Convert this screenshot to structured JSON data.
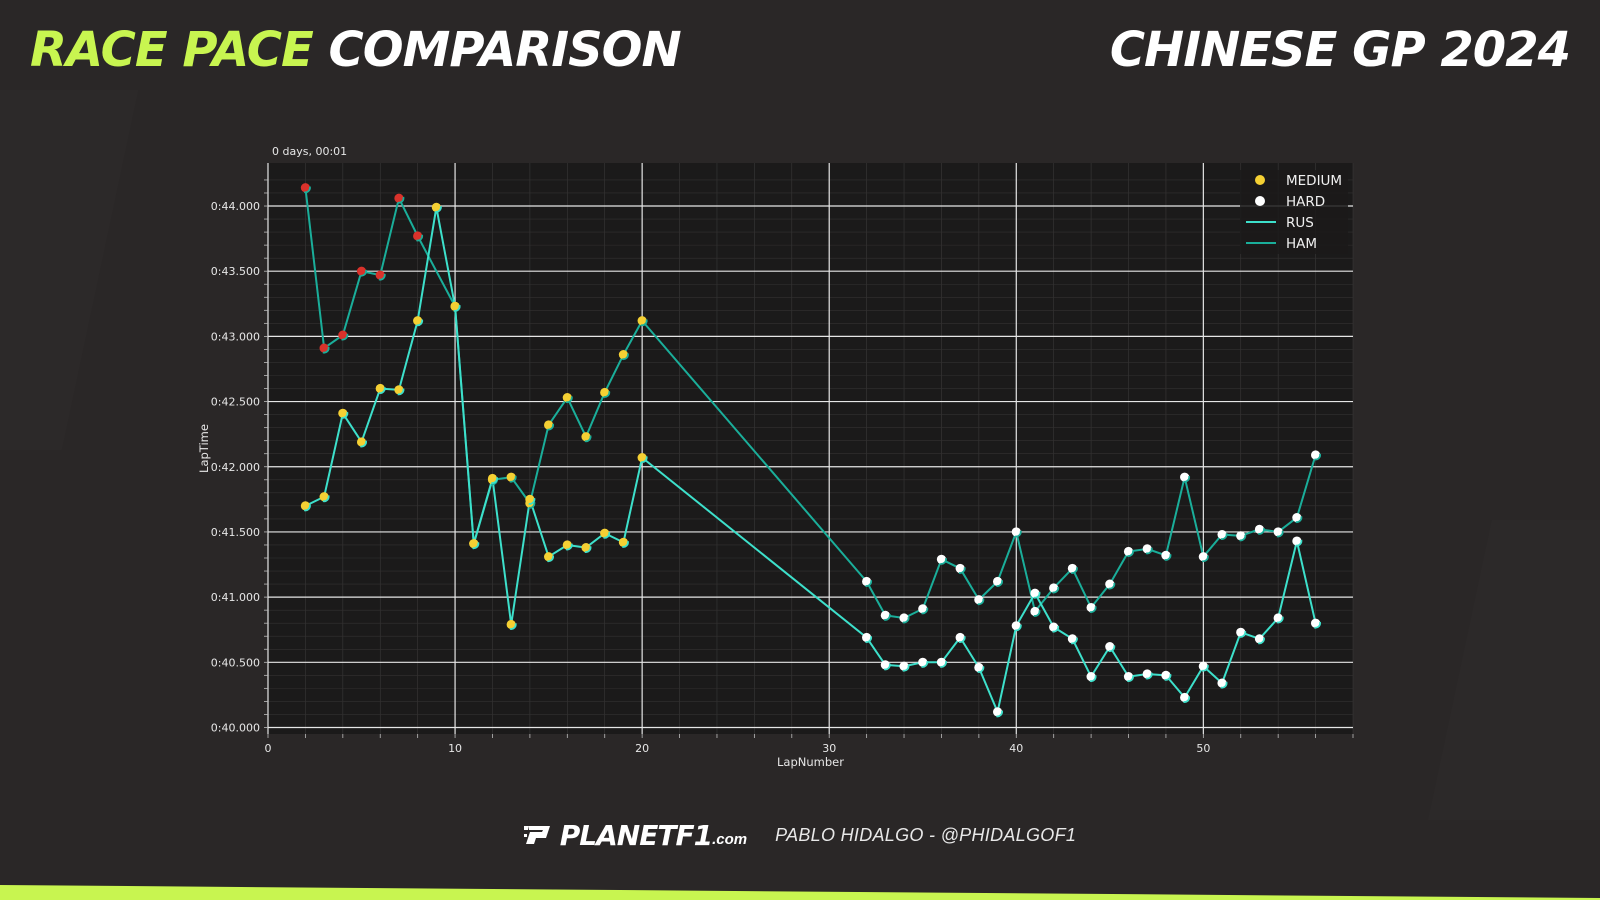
{
  "header": {
    "title_accent": "RACE PACE",
    "title_rest": "COMPARISON",
    "event": "CHINESE GP 2024"
  },
  "footer": {
    "brand": "PLANETF1",
    "brand_suffix": ".com",
    "credit": "PABLO HIDALGO - @PHIDALGOF1"
  },
  "colors": {
    "background": "#2a2727",
    "accent": "#c8f550",
    "plot_bg": "#1b1a1a",
    "medium": "#f5d033",
    "hard": "#ffffff",
    "soft": "#d9322b",
    "rus_line": "#3de0cb",
    "ham_line": "#1aae9a"
  },
  "chart_data": {
    "type": "line",
    "xlabel": "LapNumber",
    "ylabel": "LapTime",
    "offset_label": "0 days, 00:01",
    "xlim": [
      0,
      58
    ],
    "ylim": [
      39.95,
      44.33
    ],
    "xticks": [
      0,
      10,
      20,
      30,
      40,
      50
    ],
    "yticks": [
      40.0,
      40.5,
      41.0,
      41.5,
      42.0,
      42.5,
      43.0,
      43.5,
      44.0
    ],
    "ytick_labels": [
      "0:40.000",
      "0:40.500",
      "0:41.000",
      "0:41.500",
      "0:42.000",
      "0:42.500",
      "0:43.000",
      "0:43.500",
      "0:44.000"
    ],
    "grid": true,
    "legend_position": "top-right",
    "legend": [
      {
        "label": "MEDIUM",
        "kind": "marker",
        "color": "#f5d033"
      },
      {
        "label": "HARD",
        "kind": "marker",
        "color": "#ffffff"
      },
      {
        "label": "RUS",
        "kind": "line",
        "color": "#3de0cb"
      },
      {
        "label": "HAM",
        "kind": "line",
        "color": "#1aae9a"
      }
    ],
    "series": [
      {
        "name": "RUS",
        "color": "#3de0cb",
        "points": [
          {
            "x": 2,
            "y": 41.7,
            "compound": "MEDIUM"
          },
          {
            "x": 3,
            "y": 41.77,
            "compound": "MEDIUM"
          },
          {
            "x": 4,
            "y": 42.41,
            "compound": "MEDIUM"
          },
          {
            "x": 5,
            "y": 42.19,
            "compound": "MEDIUM"
          },
          {
            "x": 6,
            "y": 42.6,
            "compound": "MEDIUM"
          },
          {
            "x": 7,
            "y": 42.59,
            "compound": "MEDIUM"
          },
          {
            "x": 8,
            "y": 43.12,
            "compound": "MEDIUM"
          },
          {
            "x": 9,
            "y": 43.99,
            "compound": "MEDIUM"
          },
          {
            "x": 10,
            "y": 43.23,
            "compound": "MEDIUM"
          },
          {
            "x": 11,
            "y": 41.41,
            "compound": "MEDIUM"
          },
          {
            "x": 12,
            "y": 41.91,
            "compound": "MEDIUM"
          },
          {
            "x": 13,
            "y": 40.79,
            "compound": "MEDIUM"
          },
          {
            "x": 14,
            "y": 41.75,
            "compound": "MEDIUM"
          },
          {
            "x": 15,
            "y": 41.31,
            "compound": "MEDIUM"
          },
          {
            "x": 16,
            "y": 41.4,
            "compound": "MEDIUM"
          },
          {
            "x": 17,
            "y": 41.38,
            "compound": "MEDIUM"
          },
          {
            "x": 18,
            "y": 41.49,
            "compound": "MEDIUM"
          },
          {
            "x": 19,
            "y": 41.42,
            "compound": "MEDIUM"
          },
          {
            "x": 20,
            "y": 42.07,
            "compound": "MEDIUM"
          },
          {
            "x": 32,
            "y": 40.69,
            "compound": "HARD"
          },
          {
            "x": 33,
            "y": 40.48,
            "compound": "HARD"
          },
          {
            "x": 34,
            "y": 40.47,
            "compound": "HARD"
          },
          {
            "x": 35,
            "y": 40.5,
            "compound": "HARD"
          },
          {
            "x": 36,
            "y": 40.5,
            "compound": "HARD"
          },
          {
            "x": 37,
            "y": 40.69,
            "compound": "HARD"
          },
          {
            "x": 38,
            "y": 40.46,
            "compound": "HARD"
          },
          {
            "x": 39,
            "y": 40.12,
            "compound": "HARD"
          },
          {
            "x": 40,
            "y": 40.78,
            "compound": "HARD"
          },
          {
            "x": 41,
            "y": 41.03,
            "compound": "HARD"
          },
          {
            "x": 42,
            "y": 40.77,
            "compound": "HARD"
          },
          {
            "x": 43,
            "y": 40.68,
            "compound": "HARD"
          },
          {
            "x": 44,
            "y": 40.39,
            "compound": "HARD"
          },
          {
            "x": 45,
            "y": 40.62,
            "compound": "HARD"
          },
          {
            "x": 46,
            "y": 40.39,
            "compound": "HARD"
          },
          {
            "x": 47,
            "y": 40.41,
            "compound": "HARD"
          },
          {
            "x": 48,
            "y": 40.4,
            "compound": "HARD"
          },
          {
            "x": 49,
            "y": 40.23,
            "compound": "HARD"
          },
          {
            "x": 50,
            "y": 40.47,
            "compound": "HARD"
          },
          {
            "x": 51,
            "y": 40.34,
            "compound": "HARD"
          },
          {
            "x": 52,
            "y": 40.73,
            "compound": "HARD"
          },
          {
            "x": 53,
            "y": 40.68,
            "compound": "HARD"
          },
          {
            "x": 54,
            "y": 40.84,
            "compound": "HARD"
          },
          {
            "x": 55,
            "y": 41.43,
            "compound": "HARD"
          },
          {
            "x": 56,
            "y": 40.8,
            "compound": "HARD"
          }
        ]
      },
      {
        "name": "HAM",
        "color": "#1aae9a",
        "points": [
          {
            "x": 2,
            "y": 44.14,
            "compound": "SOFT"
          },
          {
            "x": 3,
            "y": 42.91,
            "compound": "SOFT"
          },
          {
            "x": 4,
            "y": 43.01,
            "compound": "SOFT"
          },
          {
            "x": 5,
            "y": 43.5,
            "compound": "SOFT"
          },
          {
            "x": 6,
            "y": 43.47,
            "compound": "SOFT"
          },
          {
            "x": 7,
            "y": 44.06,
            "compound": "SOFT"
          },
          {
            "x": 8,
            "y": 43.77,
            "compound": "SOFT"
          },
          {
            "x": 10,
            "y": 43.23,
            "compound": "MEDIUM"
          },
          {
            "x": 11,
            "y": 41.41,
            "compound": "MEDIUM"
          },
          {
            "x": 12,
            "y": 41.9,
            "compound": "MEDIUM"
          },
          {
            "x": 13,
            "y": 41.92,
            "compound": "MEDIUM"
          },
          {
            "x": 14,
            "y": 41.72,
            "compound": "MEDIUM"
          },
          {
            "x": 15,
            "y": 42.32,
            "compound": "MEDIUM"
          },
          {
            "x": 16,
            "y": 42.53,
            "compound": "MEDIUM"
          },
          {
            "x": 17,
            "y": 42.23,
            "compound": "MEDIUM"
          },
          {
            "x": 18,
            "y": 42.57,
            "compound": "MEDIUM"
          },
          {
            "x": 19,
            "y": 42.86,
            "compound": "MEDIUM"
          },
          {
            "x": 20,
            "y": 43.12,
            "compound": "MEDIUM"
          },
          {
            "x": 32,
            "y": 41.12,
            "compound": "HARD"
          },
          {
            "x": 33,
            "y": 40.86,
            "compound": "HARD"
          },
          {
            "x": 34,
            "y": 40.84,
            "compound": "HARD"
          },
          {
            "x": 35,
            "y": 40.91,
            "compound": "HARD"
          },
          {
            "x": 36,
            "y": 41.29,
            "compound": "HARD"
          },
          {
            "x": 37,
            "y": 41.22,
            "compound": "HARD"
          },
          {
            "x": 38,
            "y": 40.98,
            "compound": "HARD"
          },
          {
            "x": 39,
            "y": 41.12,
            "compound": "HARD"
          },
          {
            "x": 40,
            "y": 41.5,
            "compound": "HARD"
          },
          {
            "x": 41,
            "y": 40.89,
            "compound": "HARD"
          },
          {
            "x": 42,
            "y": 41.07,
            "compound": "HARD"
          },
          {
            "x": 43,
            "y": 41.22,
            "compound": "HARD"
          },
          {
            "x": 44,
            "y": 40.92,
            "compound": "HARD"
          },
          {
            "x": 45,
            "y": 41.1,
            "compound": "HARD"
          },
          {
            "x": 46,
            "y": 41.35,
            "compound": "HARD"
          },
          {
            "x": 47,
            "y": 41.37,
            "compound": "HARD"
          },
          {
            "x": 48,
            "y": 41.32,
            "compound": "HARD"
          },
          {
            "x": 49,
            "y": 41.92,
            "compound": "HARD"
          },
          {
            "x": 50,
            "y": 41.31,
            "compound": "HARD"
          },
          {
            "x": 51,
            "y": 41.48,
            "compound": "HARD"
          },
          {
            "x": 52,
            "y": 41.47,
            "compound": "HARD"
          },
          {
            "x": 53,
            "y": 41.52,
            "compound": "HARD"
          },
          {
            "x": 54,
            "y": 41.5,
            "compound": "HARD"
          },
          {
            "x": 55,
            "y": 41.61,
            "compound": "HARD"
          },
          {
            "x": 56,
            "y": 42.09,
            "compound": "HARD"
          }
        ]
      }
    ]
  }
}
